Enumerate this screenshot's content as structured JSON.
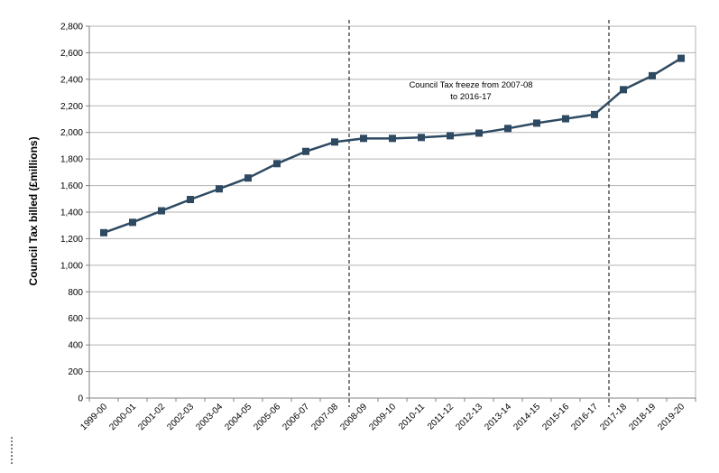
{
  "chart_data": {
    "type": "line",
    "title": "",
    "xlabel": "",
    "ylabel": "Council Tax billed (£millions)",
    "categories": [
      "1999-00",
      "2000-01",
      "2001-02",
      "2002-03",
      "2003-04",
      "2004-05",
      "2005-06",
      "2006-07",
      "2007-08",
      "2008-09",
      "2009-10",
      "2010-11",
      "2011-12",
      "2012-13",
      "2013-14",
      "2014-15",
      "2015-16",
      "2016-17",
      "2017-18",
      "2018-19",
      "2019-20"
    ],
    "series": [
      {
        "values": [
          1245,
          1323,
          1410,
          1495,
          1575,
          1657,
          1765,
          1857,
          1928,
          1955,
          1955,
          1962,
          1975,
          1995,
          2030,
          2070,
          2103,
          2135,
          2322,
          2427,
          2558
        ],
        "color": "#2e4a62",
        "marker": "square"
      }
    ],
    "ylim": [
      0,
      2800
    ],
    "yticks": [
      "0",
      "200",
      "400",
      "600",
      "800",
      "1,000",
      "1,200",
      "1,400",
      "1,600",
      "1,800",
      "2,000",
      "2,200",
      "2,400",
      "2,600",
      "2,800"
    ],
    "ytick_values": [
      0,
      200,
      400,
      600,
      800,
      1000,
      1200,
      1400,
      1600,
      1800,
      2000,
      2200,
      2400,
      2600,
      2800
    ],
    "grid": true,
    "legend": "none",
    "annotation": {
      "line1": "Council Tax freeze from 2007-08",
      "line2": "to 2016-17"
    },
    "vlines_between": [
      [
        "2007-08",
        "2008-09"
      ],
      [
        "2016-17",
        "2017-18"
      ]
    ]
  }
}
